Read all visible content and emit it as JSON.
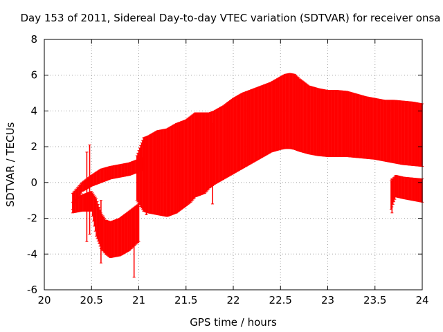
{
  "chart_data": {
    "type": "errorbar",
    "title": "Day 153 of 2011, Sidereal Day-to-day VTEC variation (SDTVAR) for receiver onsa",
    "xlabel": "GPS time / hours",
    "ylabel": "SDTVAR / TECUs",
    "xlim": [
      20,
      24
    ],
    "ylim": [
      -6,
      8
    ],
    "xticks": [
      "20",
      "20.5",
      "21",
      "21.5",
      "22",
      "22.5",
      "23",
      "23.5",
      "24"
    ],
    "yticks": [
      "-6",
      "-4",
      "-2",
      "0",
      "2",
      "4",
      "6",
      "8"
    ],
    "grid": true,
    "series_color": "#ff0000",
    "bands": [
      {
        "name": "upper-low-segment",
        "x": [
          20.3,
          20.35,
          20.4,
          20.5,
          20.6,
          20.7,
          20.8,
          20.9,
          20.95,
          21.0,
          21.05
        ],
        "high": [
          -0.6,
          -0.3,
          0.0,
          0.4,
          0.75,
          0.9,
          1.0,
          1.1,
          1.2,
          1.3,
          1.4
        ],
        "low": [
          -1.5,
          -1.0,
          -0.5,
          -0.2,
          0.0,
          0.2,
          0.3,
          0.4,
          0.5,
          0.6,
          0.7
        ]
      },
      {
        "name": "lower-dip-segment",
        "x": [
          20.3,
          20.4,
          20.5,
          20.55,
          20.6,
          20.65,
          20.7,
          20.8,
          20.9,
          21.0
        ],
        "high": [
          -1.1,
          -0.7,
          -0.5,
          -0.9,
          -1.7,
          -2.1,
          -2.2,
          -2.0,
          -1.6,
          -1.2
        ],
        "low": [
          -1.7,
          -1.6,
          -1.6,
          -3.0,
          -3.7,
          -4.0,
          -4.2,
          -4.1,
          -3.8,
          -3.3
        ]
      },
      {
        "name": "main-band",
        "x": [
          20.98,
          21.05,
          21.1,
          21.2,
          21.3,
          21.4,
          21.5,
          21.55,
          21.6,
          21.7,
          21.75,
          21.8,
          21.9,
          22.0,
          22.1,
          22.2,
          22.3,
          22.4,
          22.5,
          22.55,
          22.6,
          22.65,
          22.7,
          22.8,
          22.9,
          23.0,
          23.1,
          23.2,
          23.3,
          23.4,
          23.5,
          23.6,
          23.7,
          23.8,
          23.9,
          24.0
        ],
        "high": [
          1.5,
          2.5,
          2.6,
          2.9,
          3.0,
          3.3,
          3.5,
          3.7,
          3.9,
          3.9,
          3.9,
          4.0,
          4.3,
          4.7,
          5.0,
          5.2,
          5.4,
          5.6,
          5.9,
          6.05,
          6.1,
          6.05,
          5.8,
          5.4,
          5.25,
          5.15,
          5.15,
          5.1,
          4.95,
          4.8,
          4.7,
          4.6,
          4.6,
          4.55,
          4.5,
          4.4
        ],
        "low": [
          -1.0,
          -1.6,
          -1.7,
          -1.8,
          -1.9,
          -1.7,
          -1.3,
          -1.1,
          -0.8,
          -0.6,
          -0.3,
          -0.1,
          0.2,
          0.5,
          0.8,
          1.1,
          1.4,
          1.7,
          1.85,
          1.9,
          1.9,
          1.85,
          1.75,
          1.6,
          1.5,
          1.45,
          1.45,
          1.45,
          1.4,
          1.35,
          1.3,
          1.2,
          1.1,
          1.0,
          0.95,
          0.9
        ]
      },
      {
        "name": "late-segment",
        "x": [
          23.67,
          23.72,
          23.8,
          23.9,
          24.0
        ],
        "high": [
          0.1,
          0.4,
          0.3,
          0.25,
          0.2
        ],
        "low": [
          -1.5,
          -0.8,
          -0.9,
          -1.0,
          -1.1
        ]
      }
    ],
    "spikes": [
      {
        "x": 20.45,
        "low": -3.3,
        "high": 1.7
      },
      {
        "x": 20.48,
        "low": -2.9,
        "high": 2.1
      },
      {
        "x": 20.6,
        "low": -4.5,
        "high": -1.0
      },
      {
        "x": 20.95,
        "low": -5.3,
        "high": -2.6
      },
      {
        "x": 21.08,
        "low": -1.8,
        "high": 2.4
      },
      {
        "x": 21.62,
        "low": -0.6,
        "high": 3.9
      },
      {
        "x": 21.78,
        "low": -1.2,
        "high": 3.3
      },
      {
        "x": 23.68,
        "low": -1.7,
        "high": 0.2
      }
    ]
  }
}
